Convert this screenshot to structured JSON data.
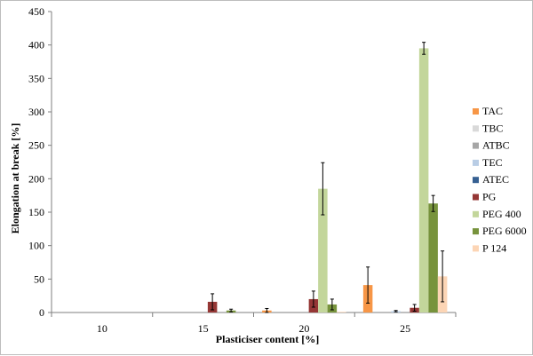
{
  "chart_data": {
    "type": "bar",
    "title": "",
    "xlabel": "Plasticiser content [%]",
    "ylabel": "Elongation at break [%]",
    "ylim": [
      0,
      450
    ],
    "yticks": [
      0,
      50,
      100,
      150,
      200,
      250,
      300,
      350,
      400,
      450
    ],
    "categories": [
      "10",
      "15",
      "20",
      "25"
    ],
    "grid": false,
    "legend_position": "right",
    "error_bars": true,
    "series": [
      {
        "name": "TAC",
        "color": "#f79646",
        "values": [
          0,
          0,
          3,
          41
        ],
        "errors": [
          0,
          0,
          3,
          27
        ]
      },
      {
        "name": "TBC",
        "color": "#d9d9d9",
        "values": [
          0,
          0,
          0,
          0
        ],
        "errors": [
          0,
          0,
          0,
          0
        ]
      },
      {
        "name": "ATBC",
        "color": "#a6a6a6",
        "values": [
          0,
          0,
          0,
          0
        ],
        "errors": [
          0,
          0,
          0,
          0
        ]
      },
      {
        "name": "TEC",
        "color": "#b9cde5",
        "values": [
          0,
          0,
          0,
          2
        ],
        "errors": [
          0,
          0,
          0,
          1
        ]
      },
      {
        "name": "ATEC",
        "color": "#366092",
        "values": [
          0,
          0,
          0,
          0
        ],
        "errors": [
          0,
          0,
          0,
          0
        ]
      },
      {
        "name": "PG",
        "color": "#953735",
        "values": [
          0,
          16,
          20,
          7
        ],
        "errors": [
          0,
          12,
          12,
          5
        ]
      },
      {
        "name": "PEG 400",
        "color": "#c3d69b",
        "values": [
          0,
          0,
          185,
          395
        ],
        "errors": [
          0,
          0,
          39,
          9
        ]
      },
      {
        "name": "PEG 6000",
        "color": "#77933c",
        "values": [
          0,
          3,
          12,
          163
        ],
        "errors": [
          0,
          2,
          8,
          12
        ]
      },
      {
        "name": "P 124",
        "color": "#fcd5b5",
        "values": [
          0,
          0,
          1,
          54
        ],
        "errors": [
          0,
          0,
          0,
          38
        ]
      }
    ]
  }
}
